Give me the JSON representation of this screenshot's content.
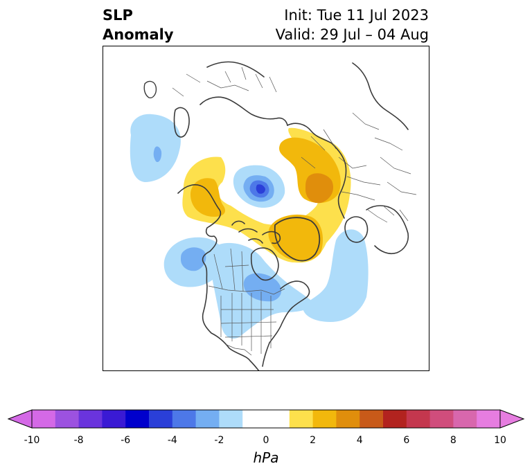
{
  "title": {
    "left_line1": "SLP",
    "left_line2": "Anomaly",
    "right_line1": "Init: Tue 11 Jul 2023",
    "right_line2": "Valid: 29 Jul – 04 Aug"
  },
  "colorbar": {
    "unit": "hPa",
    "min": -10,
    "max": 10,
    "ticks": [
      "-10",
      "-8",
      "-6",
      "-4",
      "-2",
      "0",
      "2",
      "4",
      "6",
      "8",
      "10"
    ],
    "colors": [
      "#d469e6",
      "#9c52e0",
      "#6a34dd",
      "#3a1ad4",
      "#0000cc",
      "#2a3fd8",
      "#4d78e8",
      "#74aef2",
      "#aedcfa",
      "#ffffff",
      "#ffffff",
      "#fde04c",
      "#f2b80c",
      "#e08e0c",
      "#c85a19",
      "#b2231f",
      "#c4374e",
      "#d04d7c",
      "#d867ad",
      "#e67de0"
    ]
  },
  "map_colors": {
    "neg1": "#aedcfa",
    "neg2": "#74aef2",
    "neg3": "#4d78e8",
    "neg4": "#2a3fd8",
    "pos1": "#fde04c",
    "pos2": "#f2b80c",
    "pos3": "#e08e0c",
    "coast": "#3a3a3a",
    "border": "#555555"
  }
}
